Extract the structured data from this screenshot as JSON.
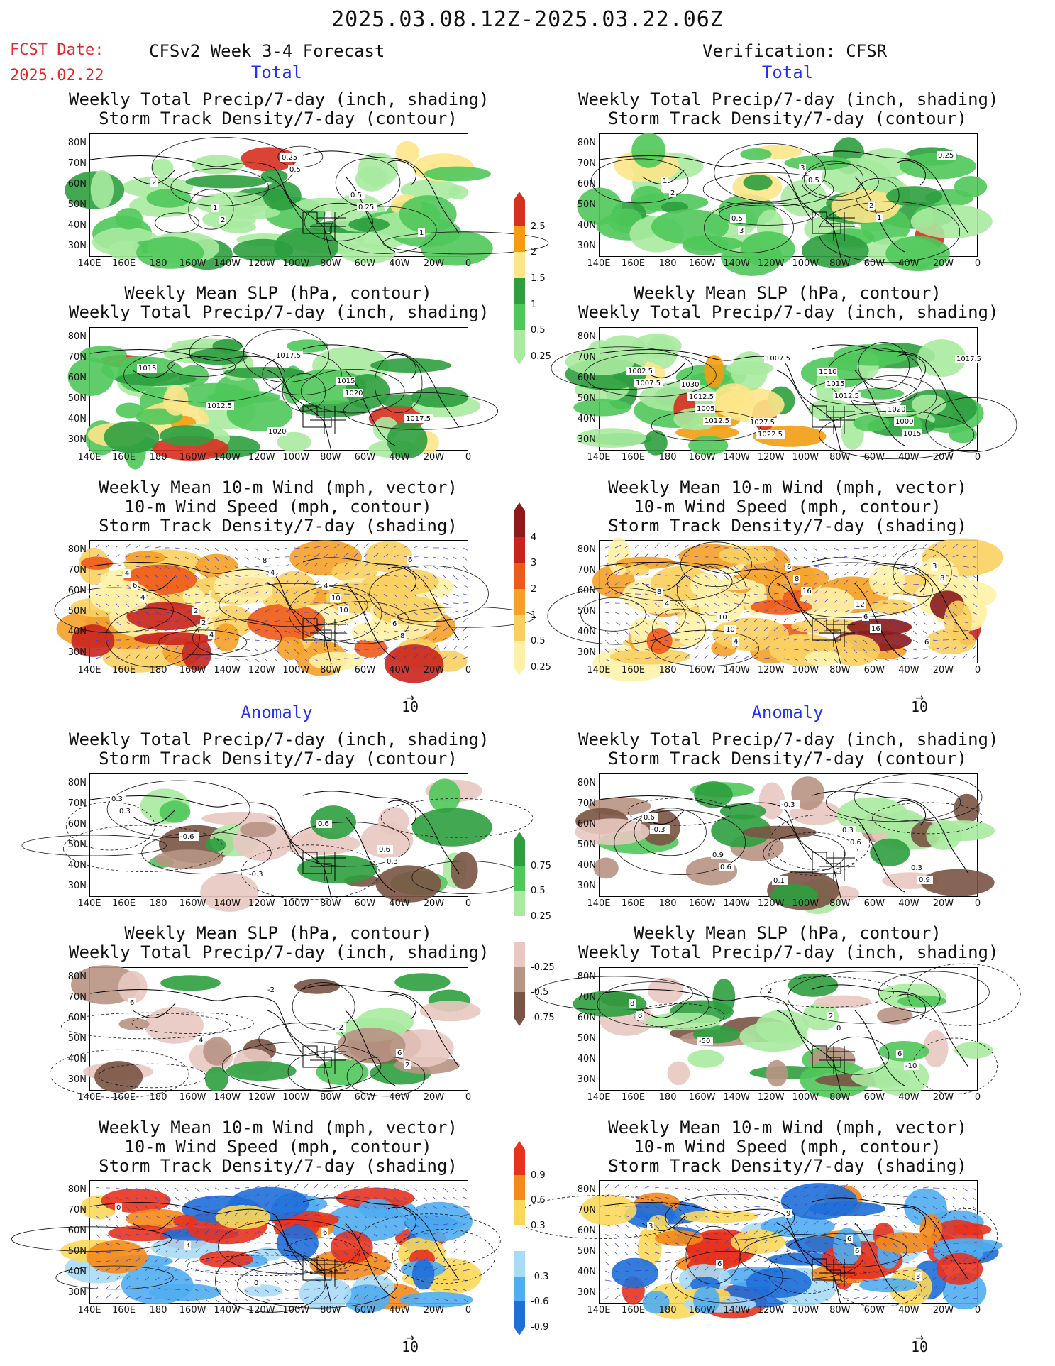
{
  "header": {
    "title": "2025.03.08.12Z-2025.03.22.06Z",
    "fcst_label": "FCST Date:",
    "fcst_date": "2025.02.22",
    "model": "CFSv2 Week 3-4 Forecast",
    "verification": "Verification: CFSR"
  },
  "sections": {
    "total": "Total",
    "anomaly": "Anomaly"
  },
  "titles": {
    "precip_storm": [
      "Weekly Total Precip/7-day (inch, shading)",
      "Storm Track Density/7-day (contour)"
    ],
    "slp_precip": [
      "Weekly Mean SLP (hPa, contour)",
      "Weekly Total Precip/7-day (inch, shading)"
    ],
    "wind_storm": [
      "Weekly Mean 10-m Wind (mph, vector)",
      "10-m Wind Speed (mph, contour)",
      "Storm Track Density/7-day (shading)"
    ]
  },
  "axes": {
    "lat": [
      "80N",
      "70N",
      "60N",
      "50N",
      "40N",
      "30N"
    ],
    "lon": [
      "140E",
      "160E",
      "180",
      "160W",
      "140W",
      "120W",
      "100W",
      "80W",
      "60W",
      "40W",
      "20W",
      "0"
    ]
  },
  "vector_ref": "10",
  "colorbars": {
    "precip_total": {
      "ticks": [
        "2.5",
        "2",
        "1.5",
        "1",
        "0.5",
        "0.25"
      ],
      "colors": [
        "#d7301f",
        "#f39c12",
        "#fde58a",
        "#2e9e3f",
        "#4fc85a",
        "#a9eaa0"
      ]
    },
    "storm_total": {
      "ticks": [
        "4",
        "3",
        "2",
        "1",
        "0.5",
        "0.25"
      ],
      "colors": [
        "#8b1a1a",
        "#c9231d",
        "#ee5a1a",
        "#f5a028",
        "#f9d060",
        "#fff2a8"
      ]
    },
    "precip_anom": {
      "ticks": [
        "0.75",
        "0.5",
        "0.25",
        "-0.25",
        "-0.5",
        "-0.75"
      ],
      "colors": [
        "#2e9e3f",
        "#4fc85a",
        "#a9eaa0",
        "#ffffff",
        "#e8c8c0",
        "#b89484",
        "#7a5444"
      ]
    },
    "storm_anom": {
      "ticks": [
        "0.9",
        "0.6",
        "0.3",
        "-0.3",
        "-0.6",
        "-0.9"
      ],
      "colors": [
        "#e8321e",
        "#f58a1a",
        "#fcd85a",
        "#ffffff",
        "#a8dcf5",
        "#50aef0",
        "#1f6fd8"
      ]
    }
  },
  "contour_labels": {
    "a1": [
      "1",
      "0.25",
      "0.5",
      "1",
      "2",
      "2",
      "0.5",
      "0.25"
    ],
    "b1": [
      "1",
      "0.5",
      "3",
      "2",
      "0.25",
      "2",
      "3",
      "0.5",
      "1"
    ],
    "a2": [
      "1020",
      "1015",
      "1017.5",
      "1015",
      "1012.5",
      "1017.5",
      "1020"
    ],
    "b2": [
      "1030",
      "1027.5",
      "1010",
      "1020",
      "1017.5",
      "1012.5",
      "1022.5",
      "1015",
      "1000",
      "1002.5",
      "1005",
      "1007.5",
      "1012.5",
      "1015",
      "1007.5",
      "1012.5"
    ],
    "a3": [
      "4",
      "6",
      "4",
      "2",
      "8",
      "10",
      "8",
      "6",
      "2",
      "4",
      "10",
      "6",
      "4",
      "4"
    ],
    "b3": [
      "10",
      "6",
      "12",
      "6",
      "8",
      "10",
      "8",
      "6",
      "3",
      "4",
      "4",
      "16",
      "16",
      "8"
    ],
    "a4": [
      "0.6",
      "0.3",
      "-0.6",
      "-0.3",
      "0.6",
      "0.3",
      "0.3"
    ],
    "b4": [
      "0.1",
      "0.3",
      "0.3",
      "0.6",
      "0.9",
      "-0.3",
      "0.6",
      "0.9",
      "-0.3",
      "0.6"
    ],
    "a5": [
      "6",
      "6",
      "4",
      "-2",
      "-2",
      "2"
    ],
    "b5": [
      "2",
      "6",
      "8",
      "-50",
      "2",
      "0",
      "-10",
      "8"
    ],
    "a6": [
      "0",
      "3",
      "0",
      "6"
    ],
    "b6": [
      "6",
      "3",
      "3",
      "6",
      "9",
      "6"
    ]
  }
}
